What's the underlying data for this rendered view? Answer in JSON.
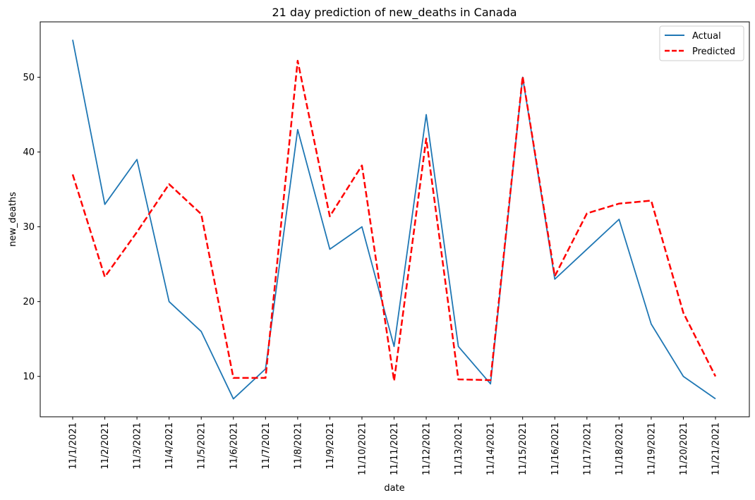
{
  "chart_data": {
    "type": "line",
    "title": "21 day prediction of new_deaths in Canada",
    "xlabel": "date",
    "ylabel": "new_deaths",
    "categories": [
      "11/1/2021",
      "11/2/2021",
      "11/3/2021",
      "11/4/2021",
      "11/5/2021",
      "11/6/2021",
      "11/7/2021",
      "11/8/2021",
      "11/9/2021",
      "11/10/2021",
      "11/11/2021",
      "11/12/2021",
      "11/13/2021",
      "11/14/2021",
      "11/15/2021",
      "11/16/2021",
      "11/17/2021",
      "11/18/2021",
      "11/19/2021",
      "11/20/2021",
      "11/21/2021"
    ],
    "series": [
      {
        "name": "Actual",
        "color": "#1f77b4",
        "style": "solid",
        "values": [
          55,
          33,
          39,
          20,
          16,
          7,
          11,
          43,
          27,
          30,
          14,
          45,
          14,
          9,
          50,
          23,
          27,
          31,
          17,
          10,
          7
        ]
      },
      {
        "name": "Predicted",
        "color": "#ff0000",
        "style": "dashed",
        "values": [
          37.0,
          23.3,
          29.3,
          35.7,
          31.7,
          9.8,
          9.8,
          52.2,
          31.4,
          38.2,
          9.4,
          41.8,
          9.6,
          9.5,
          50.1,
          23.4,
          31.8,
          33.1,
          33.5,
          18.5,
          10.0
        ]
      }
    ],
    "ylim": [
      4.6,
      57.4
    ],
    "yticks": [
      10,
      20,
      30,
      40,
      50
    ],
    "grid": false,
    "legend_position": "top-right"
  }
}
